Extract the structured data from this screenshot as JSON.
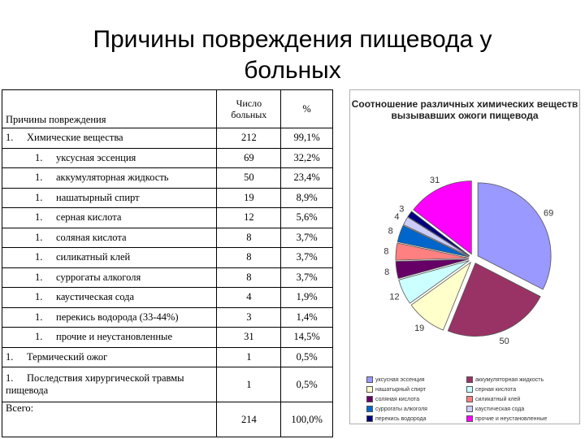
{
  "title": "Причины повреждения   пищевода у больных",
  "table": {
    "header": {
      "col1": "Причины повреждения",
      "col2": "Число больных",
      "col3": "%"
    },
    "rows": [
      {
        "num": "1.",
        "label": "Химические вещества",
        "count": "212",
        "percent": "99,1%",
        "level": 0
      },
      {
        "num": "1.",
        "label": "уксусная эссенция",
        "count": "69",
        "percent": "32,2%",
        "level": 1
      },
      {
        "num": "1.",
        "label": "аккумуляторная жидкость",
        "count": "50",
        "percent": "23,4%",
        "level": 1
      },
      {
        "num": "1.",
        "label": "нашатырный спирт",
        "count": "19",
        "percent": "8,9%",
        "level": 1
      },
      {
        "num": "1.",
        "label": "серная кислота",
        "count": "12",
        "percent": "5,6%",
        "level": 1
      },
      {
        "num": "1.",
        "label": "соляная кислота",
        "count": "8",
        "percent": "3,7%",
        "level": 1
      },
      {
        "num": "1.",
        "label": "силикатный клей",
        "count": "8",
        "percent": "3,7%",
        "level": 1
      },
      {
        "num": "1.",
        "label": "суррогаты алкоголя",
        "count": "8",
        "percent": "3,7%",
        "level": 1
      },
      {
        "num": "1.",
        "label": "каустическая сода",
        "count": "4",
        "percent": "1,9%",
        "level": 1
      },
      {
        "num": "1.",
        "label": "перекись водорода (33-44%)",
        "count": "3",
        "percent": "1,4%",
        "level": 1
      },
      {
        "num": "1.",
        "label": "прочие и неустановленные",
        "count": "31",
        "percent": "14,5%",
        "level": 1
      },
      {
        "num": "1.",
        "label": "Термический ожог",
        "count": "1",
        "percent": "0,5%",
        "level": 0
      },
      {
        "num": "1.",
        "label": "Последствия хирургической травмы пищевода",
        "count": "1",
        "percent": "0,5%",
        "level": 0
      }
    ],
    "total": {
      "label": "Всего:",
      "count": "214",
      "percent": "100,0%"
    }
  },
  "chart_data": {
    "type": "pie",
    "title": "Соотношение различных химических веществ вызывавших ожоги пищевода",
    "slices": [
      {
        "label": "уксусная эссенция",
        "value": 69,
        "color": "#9999ff"
      },
      {
        "label": "аккумуляторная жидкость",
        "value": 50,
        "color": "#993366"
      },
      {
        "label": "нашатырный спирт",
        "value": 19,
        "color": "#ffffcc"
      },
      {
        "label": "серная кислота",
        "value": 12,
        "color": "#ccffff"
      },
      {
        "label": "соляная кислота",
        "value": 8,
        "color": "#660066"
      },
      {
        "label": "силикатный клей",
        "value": 8,
        "color": "#ff8080"
      },
      {
        "label": "суррогаты алкоголя",
        "value": 8,
        "color": "#0066cc"
      },
      {
        "label": "каустическая сода",
        "value": 4,
        "color": "#ccccff"
      },
      {
        "label": "перекись водорода",
        "value": 3,
        "color": "#000080"
      },
      {
        "label": "прочие и неустановленные",
        "value": 31,
        "color": "#ff00ff"
      }
    ],
    "legend_position": "bottom"
  }
}
